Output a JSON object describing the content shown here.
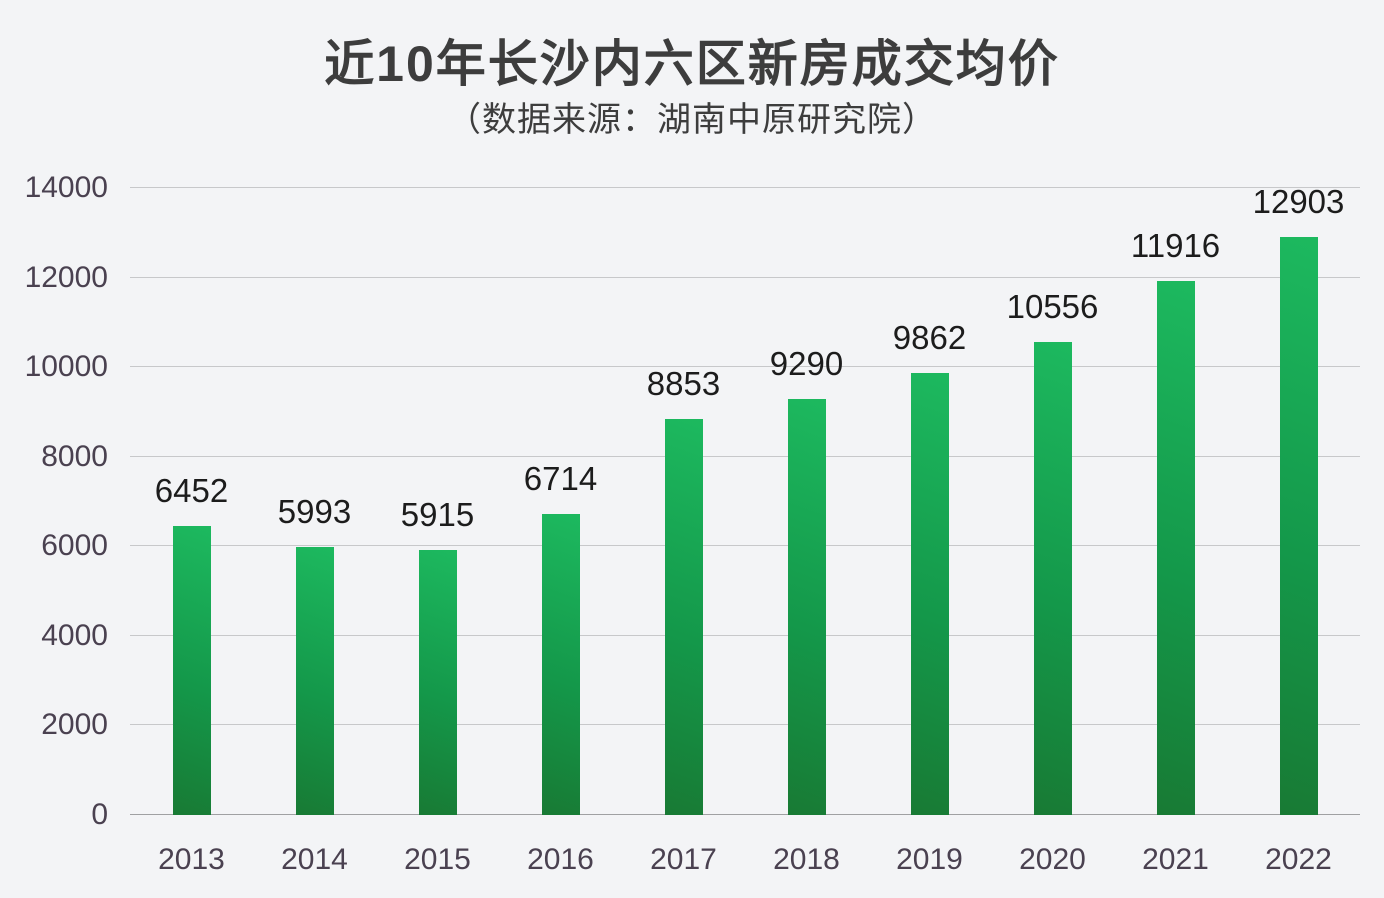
{
  "chart_data": {
    "type": "bar",
    "title": "近10年长沙内六区新房成交均价",
    "subtitle": "（数据来源：湖南中原研究院）",
    "categories": [
      "2013",
      "2014",
      "2015",
      "2016",
      "2017",
      "2018",
      "2019",
      "2020",
      "2021",
      "2022"
    ],
    "values": [
      6452,
      5993,
      5915,
      6714,
      8853,
      9290,
      9862,
      10556,
      11916,
      12903
    ],
    "xlabel": "",
    "ylabel": "",
    "ylim": [
      0,
      14000
    ],
    "yticks": [
      0,
      2000,
      4000,
      6000,
      8000,
      10000,
      12000,
      14000
    ],
    "grid": true,
    "legend_position": "none",
    "colors": {
      "background": "#f3f4f6",
      "title_text": "#3d3d3d",
      "axis_text": "#4a4150",
      "data_label_text": "#1c1c1c",
      "gridline": "#c7c8ca",
      "baseline": "#9fa0a2",
      "bar_gradient_top": "#1db95f",
      "bar_gradient_bottom": "#187a34"
    }
  }
}
